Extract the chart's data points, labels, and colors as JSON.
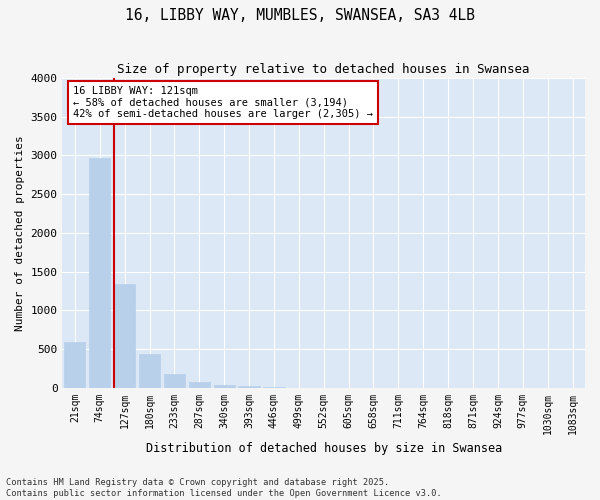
{
  "title_line1": "16, LIBBY WAY, MUMBLES, SWANSEA, SA3 4LB",
  "title_line2": "Size of property relative to detached houses in Swansea",
  "xlabel": "Distribution of detached houses by size in Swansea",
  "ylabel": "Number of detached properties",
  "bar_color": "#b8d0ea",
  "bar_edge_color": "#b8d0ea",
  "plot_bg_color": "#dce8f5",
  "fig_bg_color": "#f5f5f5",
  "grid_color": "#ffffff",
  "categories": [
    "21sqm",
    "74sqm",
    "127sqm",
    "180sqm",
    "233sqm",
    "287sqm",
    "340sqm",
    "393sqm",
    "446sqm",
    "499sqm",
    "552sqm",
    "605sqm",
    "658sqm",
    "711sqm",
    "764sqm",
    "818sqm",
    "871sqm",
    "924sqm",
    "977sqm",
    "1030sqm",
    "1083sqm"
  ],
  "values": [
    590,
    2970,
    1340,
    440,
    175,
    70,
    40,
    20,
    5,
    0,
    0,
    0,
    0,
    0,
    0,
    0,
    0,
    0,
    0,
    0,
    0
  ],
  "ylim": [
    0,
    4000
  ],
  "yticks": [
    0,
    500,
    1000,
    1500,
    2000,
    2500,
    3000,
    3500,
    4000
  ],
  "vline_index": 2,
  "vline_color": "#cc0000",
  "property_label": "16 LIBBY WAY: 121sqm",
  "annotation_line1": "← 58% of detached houses are smaller (3,194)",
  "annotation_line2": "42% of semi-detached houses are larger (2,305) →",
  "annotation_box_facecolor": "#ffffff",
  "annotation_box_edgecolor": "#cc0000",
  "footnote_line1": "Contains HM Land Registry data © Crown copyright and database right 2025.",
  "footnote_line2": "Contains public sector information licensed under the Open Government Licence v3.0."
}
